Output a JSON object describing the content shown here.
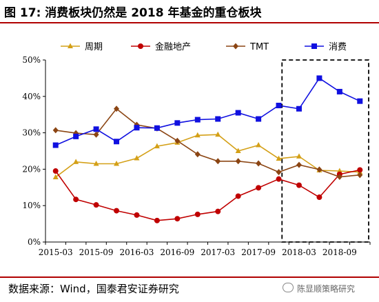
{
  "figure": {
    "title": "图 17:  消费板块仍然是 2018 年基金的重仓板块",
    "source": "数据来源：Wind，国泰君安证券研究",
    "watermark": "陈显顺策略研究"
  },
  "chart_data": {
    "type": "line",
    "title": "",
    "xlabel": "",
    "ylabel": "",
    "x": [
      "2015-03",
      "2015-06",
      "2015-09",
      "2015-12",
      "2016-03",
      "2016-06",
      "2016-09",
      "2016-12",
      "2017-03",
      "2017-06",
      "2017-09",
      "2017-12",
      "2018-03",
      "2018-06",
      "2018-09",
      "2018-12"
    ],
    "x_ticks": [
      "2015-03",
      "2015-09",
      "2016-03",
      "2016-09",
      "2017-03",
      "2017-09",
      "2018-03",
      "2018-09"
    ],
    "ylim": [
      0,
      50
    ],
    "y_ticks": [
      "0%",
      "10%",
      "20%",
      "30%",
      "40%",
      "50%"
    ],
    "grid": false,
    "legend_position": "top",
    "highlight_box": {
      "x_start": "2018-03",
      "x_end": "2018-12",
      "style": "dashed"
    },
    "series": [
      {
        "name": "周期",
        "color": "#d4a017",
        "marker": "triangle",
        "values": [
          17.8,
          22.0,
          21.5,
          21.5,
          23.0,
          26.3,
          27.3,
          29.3,
          29.5,
          25.0,
          26.6,
          22.9,
          23.5,
          19.7,
          19.5,
          19.2
        ]
      },
      {
        "name": "金融地产",
        "color": "#c00000",
        "marker": "circle",
        "values": [
          19.5,
          11.7,
          10.2,
          8.6,
          7.4,
          5.9,
          6.4,
          7.6,
          8.4,
          12.6,
          14.9,
          17.3,
          15.6,
          12.3,
          18.6,
          19.8
        ]
      },
      {
        "name": "TMT",
        "color": "#8b4513",
        "marker": "diamond",
        "values": [
          30.7,
          29.9,
          29.5,
          36.6,
          32.2,
          31.2,
          27.8,
          24.1,
          22.2,
          22.2,
          21.6,
          19.2,
          21.2,
          19.9,
          17.9,
          18.4
        ]
      },
      {
        "name": "消费",
        "color": "#1010e0",
        "marker": "square",
        "values": [
          26.6,
          29.0,
          31.0,
          27.6,
          31.4,
          31.3,
          32.7,
          33.6,
          33.8,
          35.5,
          33.8,
          37.5,
          36.6,
          45.0,
          41.3,
          38.7
        ]
      }
    ]
  }
}
